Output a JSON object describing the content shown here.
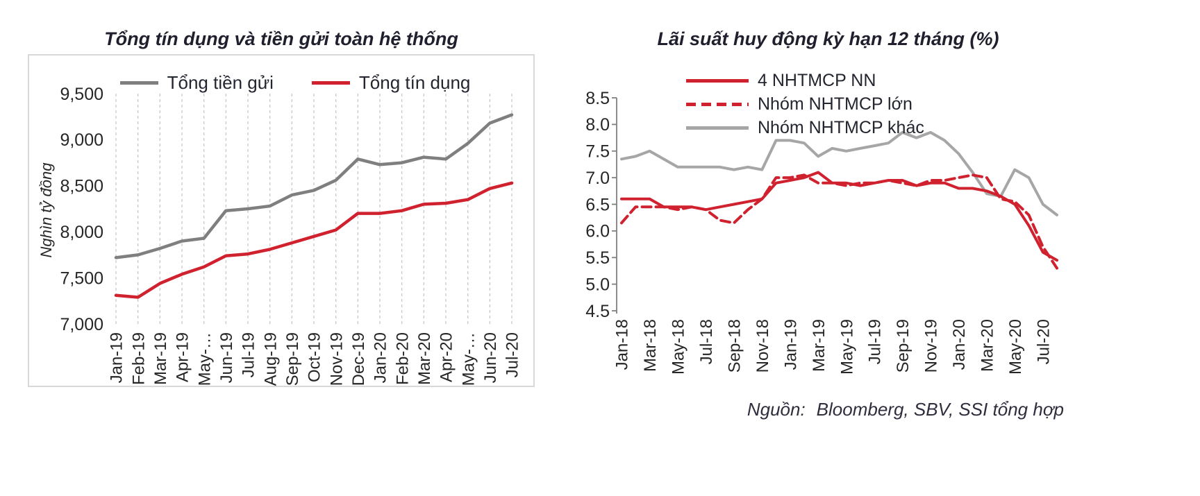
{
  "source": {
    "label": "Nguồn:",
    "text": "Bloomberg, SBV, SSI tổng hợp"
  },
  "chart_data": [
    {
      "type": "line",
      "title": "Tổng tín dụng và tiền gửi toàn hệ thống",
      "ylabel": "Nghìn tỷ đồng",
      "ylim": [
        7000,
        9500
      ],
      "ytick_step": 500,
      "ytick_labels": [
        "7,000",
        "7,500",
        "8,000",
        "8,500",
        "9,000",
        "9,500"
      ],
      "grid": "vertical-dashed",
      "legend_position": "top-inside-horizontal",
      "xtick_every": 1,
      "categories": [
        "Jan-19",
        "Feb-19",
        "Mar-19",
        "Apr-19",
        "May-…",
        "Jun-19",
        "Jul-19",
        "Aug-19",
        "Sep-19",
        "Oct-19",
        "Nov-19",
        "Dec-19",
        "Jan-20",
        "Feb-20",
        "Mar-20",
        "Apr-20",
        "May-…",
        "Jun-20",
        "Jul-20"
      ],
      "series": [
        {
          "name": "Tổng tiền gửi",
          "color": "#7f7f7f",
          "dash": "solid",
          "values": [
            7720,
            7750,
            7820,
            7900,
            7930,
            8230,
            8250,
            8280,
            8400,
            8450,
            8560,
            8790,
            8730,
            8750,
            8810,
            8790,
            8960,
            9180,
            9270
          ]
        },
        {
          "name": "Tổng tín dụng",
          "color": "#d0212f",
          "dash": "solid",
          "values": [
            7310,
            7290,
            7440,
            7540,
            7620,
            7740,
            7760,
            7810,
            7880,
            7950,
            8020,
            8200,
            8200,
            8230,
            8300,
            8310,
            8350,
            8470,
            8530
          ]
        }
      ]
    },
    {
      "type": "line",
      "title": "Lãi suất huy động kỳ hạn 12 tháng (%)",
      "ylabel": "",
      "ylim": [
        4.5,
        8.5
      ],
      "ytick_step": 0.5,
      "ytick_labels": [
        "4.5",
        "5.0",
        "5.5",
        "6.0",
        "6.5",
        "7.0",
        "7.5",
        "8.0",
        "8.5"
      ],
      "grid": "none",
      "legend_position": "top-inside-stacked",
      "xtick_every": 2,
      "xtick_labels_shown": [
        "Jan-18",
        "Mar-18",
        "May-18",
        "Jul-18",
        "Sep-18",
        "Nov-18",
        "Jan-19",
        "Mar-19",
        "May-19",
        "Jul-19",
        "Sep-19",
        "Nov-19",
        "Jan-20",
        "Mar-20",
        "May-20",
        "Jul-20"
      ],
      "categories": [
        "Jan-18",
        "Feb-18",
        "Mar-18",
        "Apr-18",
        "May-18",
        "Jun-18",
        "Jul-18",
        "Aug-18",
        "Sep-18",
        "Oct-18",
        "Nov-18",
        "Dec-18",
        "Jan-19",
        "Feb-19",
        "Mar-19",
        "Apr-19",
        "May-19",
        "Jun-19",
        "Jul-19",
        "Aug-19",
        "Sep-19",
        "Oct-19",
        "Nov-19",
        "Dec-19",
        "Jan-20",
        "Feb-20",
        "Mar-20",
        "Apr-20",
        "May-20",
        "Jun-20",
        "Jul-20",
        "Aug-20"
      ],
      "series": [
        {
          "name": "4 NHTMCP NN",
          "color": "#d0212f",
          "dash": "solid",
          "values": [
            6.6,
            6.6,
            6.6,
            6.45,
            6.45,
            6.45,
            6.4,
            6.45,
            6.5,
            6.55,
            6.6,
            6.9,
            6.95,
            7.0,
            7.1,
            6.9,
            6.9,
            6.85,
            6.9,
            6.95,
            6.95,
            6.85,
            6.9,
            6.9,
            6.8,
            6.8,
            6.75,
            6.65,
            6.5,
            6.1,
            5.6,
            5.45
          ]
        },
        {
          "name": "Nhóm NHTMCP lớn",
          "color": "#d0212f",
          "dash": "dashed",
          "values": [
            6.15,
            6.45,
            6.45,
            6.45,
            6.4,
            6.45,
            6.4,
            6.2,
            6.15,
            6.4,
            6.6,
            7.0,
            7.0,
            7.05,
            6.9,
            6.9,
            6.85,
            6.9,
            6.9,
            6.95,
            6.9,
            6.85,
            6.95,
            6.95,
            7.0,
            7.05,
            7.0,
            6.6,
            6.55,
            6.3,
            5.7,
            5.3
          ]
        },
        {
          "name": "Nhóm NHTMCP khác",
          "color": "#a6a6a6",
          "dash": "solid",
          "values": [
            7.35,
            7.4,
            7.5,
            7.35,
            7.2,
            7.2,
            7.2,
            7.2,
            7.15,
            7.2,
            7.15,
            7.7,
            7.7,
            7.65,
            7.4,
            7.55,
            7.5,
            7.55,
            7.6,
            7.65,
            7.85,
            7.75,
            7.85,
            7.7,
            7.45,
            7.1,
            6.7,
            6.65,
            7.15,
            7.0,
            6.5,
            6.3
          ]
        }
      ]
    }
  ]
}
